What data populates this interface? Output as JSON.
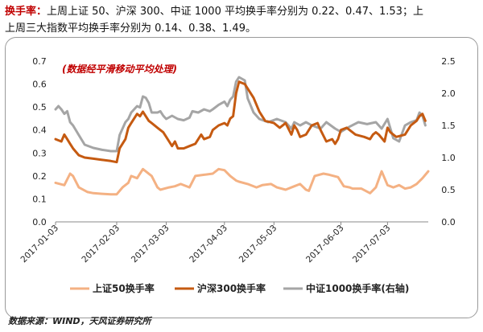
{
  "header": {
    "key": "换手率：",
    "line1": "上周上证 50、沪深 300、中证 1000 平均换手率分别为 0.22、0.47、1.53；上",
    "line2": "上周三大指数平均换手率分别为 0.14、0.38、1.49。"
  },
  "source": "数据来源：WIND，天风证券研究所",
  "colors": {
    "sz50": "#f4b183",
    "hs300": "#c55a11",
    "zz1000": "#a5a5a5",
    "note": "#c00000",
    "axis": "#888888"
  },
  "chart_data": {
    "type": "line",
    "note": "(数据经平滑移动平均处理)",
    "x_ticks": [
      "2017-01-03",
      "2017-02-03",
      "2017-03-03",
      "2017-04-03",
      "2017-05-03",
      "2017-06-03",
      "2017-07-03"
    ],
    "x_range": [
      0,
      128
    ],
    "x_tick_positions": [
      0,
      21,
      38,
      58,
      75,
      98,
      114
    ],
    "left_axis": {
      "ylim": [
        0,
        0.7
      ],
      "ticks": [
        "0.0",
        "0.1",
        "0.2",
        "0.3",
        "0.4",
        "0.5",
        "0.6",
        "0.7"
      ]
    },
    "right_axis": {
      "ylim": [
        0,
        2.5
      ],
      "ticks": [
        "0.0",
        "0.5",
        "1.0",
        "1.5",
        "2.0",
        "2.5"
      ]
    },
    "series": [
      {
        "name": "上证50换手率",
        "axis": "left",
        "x": [
          0,
          3,
          5,
          6,
          8,
          11,
          13,
          16,
          19,
          21,
          23,
          25,
          26,
          28,
          30,
          33,
          35,
          36,
          39,
          41,
          43,
          46,
          48,
          51,
          54,
          56,
          58,
          60,
          62,
          63,
          66,
          69,
          71,
          74,
          76,
          79,
          82,
          84,
          86,
          87,
          89,
          92,
          94,
          97,
          99,
          101,
          102,
          105,
          108,
          110,
          112,
          114,
          116,
          118,
          120,
          122,
          124,
          126,
          128
        ],
        "values": [
          0.17,
          0.16,
          0.21,
          0.2,
          0.15,
          0.13,
          0.125,
          0.122,
          0.12,
          0.12,
          0.15,
          0.17,
          0.2,
          0.19,
          0.23,
          0.2,
          0.15,
          0.14,
          0.15,
          0.155,
          0.165,
          0.15,
          0.2,
          0.205,
          0.21,
          0.23,
          0.225,
          0.2,
          0.18,
          0.175,
          0.165,
          0.15,
          0.16,
          0.165,
          0.15,
          0.14,
          0.155,
          0.165,
          0.14,
          0.135,
          0.2,
          0.21,
          0.205,
          0.195,
          0.155,
          0.15,
          0.145,
          0.145,
          0.125,
          0.15,
          0.22,
          0.16,
          0.15,
          0.16,
          0.145,
          0.15,
          0.165,
          0.19,
          0.22
        ]
      },
      {
        "name": "沪深300换手率",
        "axis": "left",
        "x": [
          0,
          2,
          3,
          4,
          5,
          6,
          8,
          10,
          13,
          16,
          19,
          21,
          22,
          24,
          25,
          26,
          28,
          29,
          30,
          31,
          32,
          33,
          35,
          37,
          38,
          39,
          40,
          41,
          42,
          44,
          46,
          48,
          50,
          51,
          53,
          54,
          56,
          58,
          59,
          60,
          61,
          62,
          63,
          65,
          68,
          70,
          72,
          75,
          77,
          79,
          81,
          82,
          83,
          84,
          86,
          88,
          90,
          91,
          93,
          95,
          96,
          97,
          98,
          100,
          103,
          106,
          108,
          109,
          110,
          111,
          113,
          114,
          115,
          117,
          120,
          122,
          124,
          125,
          126,
          127
        ],
        "values": [
          0.36,
          0.35,
          0.38,
          0.36,
          0.34,
          0.32,
          0.29,
          0.28,
          0.275,
          0.27,
          0.265,
          0.26,
          0.32,
          0.36,
          0.41,
          0.43,
          0.47,
          0.46,
          0.48,
          0.46,
          0.44,
          0.43,
          0.41,
          0.39,
          0.37,
          0.35,
          0.33,
          0.35,
          0.32,
          0.32,
          0.33,
          0.34,
          0.38,
          0.36,
          0.37,
          0.4,
          0.42,
          0.43,
          0.42,
          0.45,
          0.46,
          0.56,
          0.61,
          0.6,
          0.54,
          0.48,
          0.44,
          0.43,
          0.41,
          0.43,
          0.38,
          0.42,
          0.4,
          0.37,
          0.38,
          0.42,
          0.43,
          0.4,
          0.35,
          0.36,
          0.34,
          0.36,
          0.4,
          0.41,
          0.38,
          0.37,
          0.36,
          0.38,
          0.39,
          0.38,
          0.35,
          0.41,
          0.39,
          0.37,
          0.38,
          0.42,
          0.44,
          0.46,
          0.47,
          0.44
        ]
      },
      {
        "name": "中证1000换手率(右轴)",
        "axis": "right",
        "x": [
          0,
          1,
          2,
          3,
          4,
          5,
          6,
          8,
          10,
          13,
          16,
          19,
          21,
          22,
          24,
          25,
          26,
          28,
          29,
          30,
          31,
          32,
          33,
          35,
          36,
          37,
          38,
          40,
          42,
          44,
          46,
          47,
          49,
          51,
          53,
          54,
          56,
          58,
          59,
          60,
          61,
          62,
          63,
          65,
          66,
          68,
          70,
          73,
          76,
          79,
          81,
          82,
          84,
          86,
          88,
          91,
          93,
          96,
          98,
          101,
          104,
          107,
          110,
          112,
          114,
          116,
          118,
          120,
          122,
          124,
          125,
          126,
          127
        ],
        "values": [
          1.75,
          1.8,
          1.75,
          1.68,
          1.72,
          1.55,
          1.5,
          1.35,
          1.2,
          1.15,
          1.12,
          1.1,
          1.1,
          1.35,
          1.55,
          1.6,
          1.7,
          1.8,
          1.78,
          1.95,
          1.93,
          1.85,
          1.7,
          1.7,
          1.72,
          1.65,
          1.6,
          1.65,
          1.6,
          1.58,
          1.62,
          1.72,
          1.7,
          1.75,
          1.72,
          1.75,
          1.82,
          1.87,
          1.8,
          1.9,
          1.95,
          2.18,
          2.25,
          2.2,
          1.92,
          1.7,
          1.6,
          1.55,
          1.6,
          1.55,
          1.45,
          1.55,
          1.5,
          1.55,
          1.5,
          1.45,
          1.55,
          1.45,
          1.4,
          1.48,
          1.55,
          1.52,
          1.55,
          1.45,
          1.6,
          1.3,
          1.25,
          1.5,
          1.55,
          1.58,
          1.7,
          1.65,
          1.5
        ]
      }
    ],
    "legend": [
      "上证50换手率",
      "沪深300换手率",
      "中证1000换手率(右轴)"
    ]
  }
}
